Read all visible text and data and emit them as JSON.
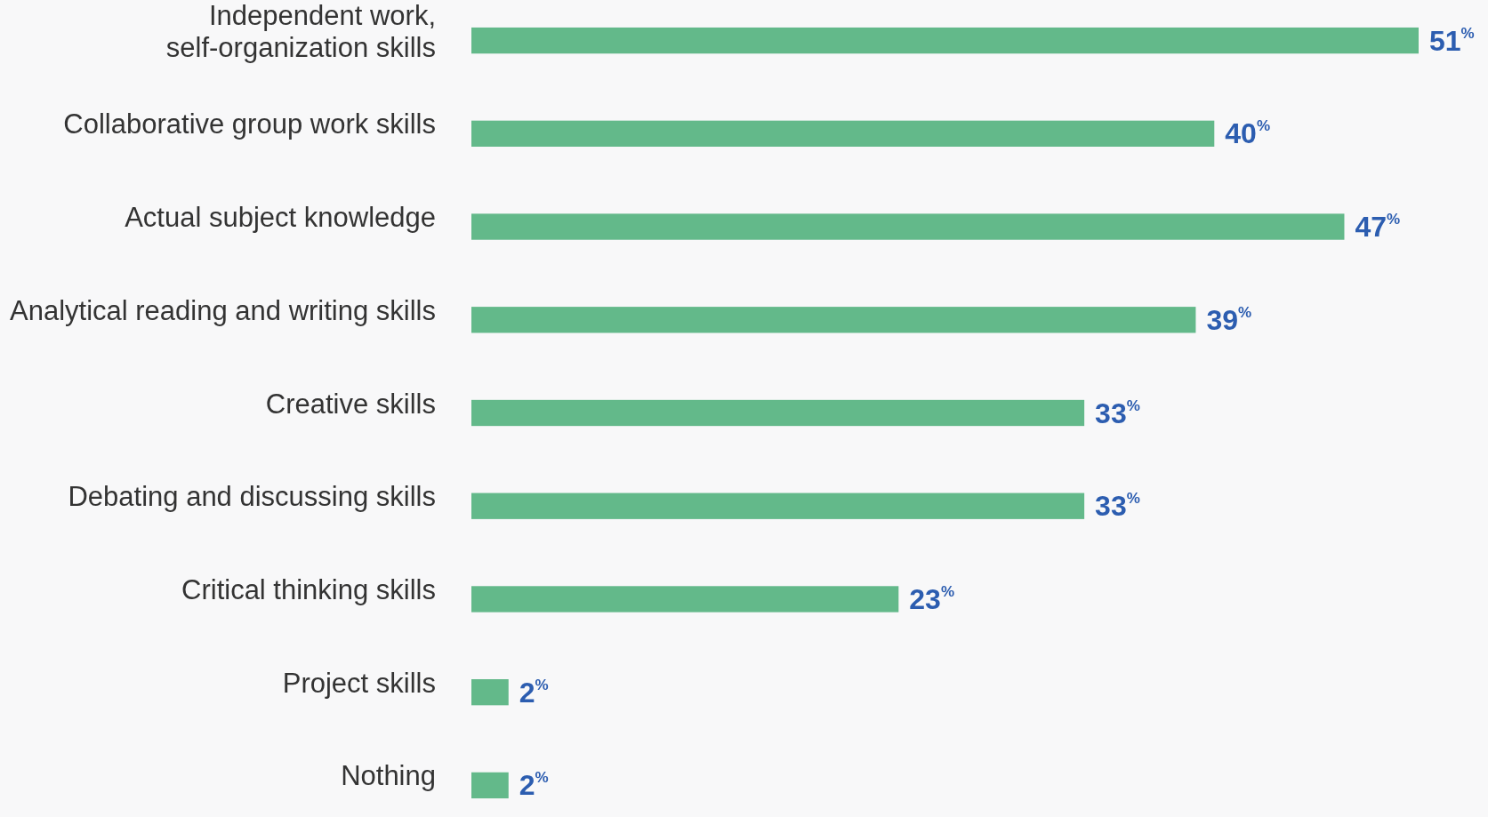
{
  "chart_data": {
    "type": "bar",
    "orientation": "horizontal",
    "categories": [
      "Independent work, self-organization skills",
      "Collaborative group work skills",
      "Actual subject knowledge",
      "Analytical reading and writing skills",
      "Creative skills",
      "Debating and discussing skills",
      "Critical thinking skills",
      "Project skills",
      "Nothing"
    ],
    "values": [
      51,
      40,
      47,
      39,
      33,
      33,
      23,
      2,
      2
    ],
    "value_labels": [
      "51$^{%}$",
      "40$^{%}$",
      "47$^{%}$",
      "39$^{%}$",
      "33$^{%}$",
      "33$^{%}$",
      "23$^{%}$",
      "2$^{%}$",
      "2$^{%}$"
    ],
    "color": "#63b98a"
  }
}
